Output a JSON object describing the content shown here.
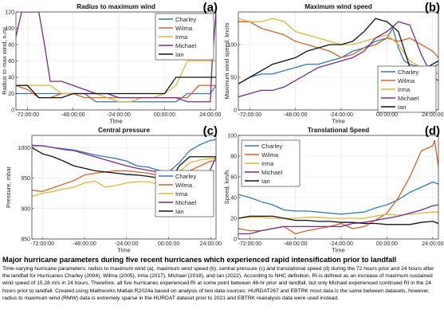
{
  "colors": {
    "Charley": "#3278b8",
    "Wilma": "#d4622b",
    "Irma": "#e0b53a",
    "Michael": "#7a2a8c",
    "Ian": "#111111"
  },
  "chart_data": [
    {
      "panel": "(a)",
      "type": "line",
      "title": "Radius to maximum wind",
      "xlabel": "Time",
      "ylabel": "Radius to max wind, n.mi",
      "xlim": [
        -78,
        27
      ],
      "ylim": [
        0,
        120
      ],
      "xticks": [
        -72,
        -48,
        -24,
        0,
        24
      ],
      "xtick_labels": [
        "-72:00:00",
        "-48:00:00",
        "-24:00:00",
        "00:00:00",
        "24:00:00"
      ],
      "yticks": [
        0,
        20,
        40,
        60,
        80,
        100,
        120
      ],
      "ytick_labels": [
        "0",
        "20",
        "40",
        "60",
        "80",
        "100",
        "120"
      ],
      "legend": {
        "position": "top-right",
        "entries": [
          "Charley",
          "Wilma",
          "Irma",
          "Michael",
          "Ian"
        ]
      },
      "series": [
        {
          "name": "Charley",
          "x": [
            -78,
            -72,
            -66,
            -60,
            -54,
            -48,
            -42,
            -36,
            -30,
            -24,
            -18,
            -12,
            -6,
            0,
            6,
            12,
            18,
            24,
            27
          ],
          "y": [
            20,
            20,
            20,
            20,
            20,
            20,
            20,
            10,
            10,
            10,
            10,
            10,
            10,
            10,
            10,
            20,
            20,
            20,
            30
          ]
        },
        {
          "name": "Wilma",
          "x": [
            -78,
            -72,
            -66,
            -60,
            -54,
            -48,
            -42,
            -36,
            -30,
            -24,
            -18,
            -12,
            -6,
            0,
            6,
            12,
            18,
            24,
            27
          ],
          "y": [
            30,
            25,
            15,
            15,
            20,
            20,
            15,
            15,
            15,
            15,
            15,
            15,
            15,
            15,
            15,
            15,
            30,
            30,
            30
          ]
        },
        {
          "name": "Irma",
          "x": [
            -78,
            -72,
            -66,
            -60,
            -54,
            -48,
            -42,
            -36,
            -30,
            -24,
            -18,
            -12,
            -6,
            0,
            6,
            12,
            18,
            24,
            27
          ],
          "y": [
            30,
            30,
            30,
            30,
            20,
            20,
            20,
            20,
            15,
            10,
            10,
            15,
            15,
            20,
            30,
            60,
            60,
            60,
            60
          ]
        },
        {
          "name": "Michael",
          "x": [
            -78,
            -75,
            -72,
            -66,
            -63,
            -60,
            -54,
            -48,
            -42,
            -36,
            -30,
            -24,
            -18,
            -12,
            -6,
            0,
            6,
            12,
            18,
            24,
            25,
            27
          ],
          "y": [
            90,
            120,
            120,
            120,
            80,
            35,
            35,
            30,
            25,
            20,
            20,
            15,
            15,
            15,
            15,
            15,
            15,
            10,
            10,
            10,
            60,
            120
          ]
        },
        {
          "name": "Ian",
          "x": [
            -78,
            -72,
            -66,
            -60,
            -54,
            -48,
            -42,
            -36,
            -30,
            -24,
            -18,
            -12,
            -6,
            0,
            6,
            12,
            18,
            24,
            27
          ],
          "y": [
            30,
            30,
            15,
            15,
            15,
            20,
            20,
            20,
            20,
            20,
            20,
            20,
            20,
            20,
            40,
            40,
            40,
            40,
            40
          ]
        }
      ]
    },
    {
      "panel": "(b)",
      "type": "line",
      "title": "Maximum wind speed",
      "xlabel": "Time",
      "ylabel": "Maximum wind speed, knots",
      "xlim": [
        -78,
        27
      ],
      "ylim": [
        0,
        150
      ],
      "xticks": [
        -72,
        -48,
        -24,
        0,
        24
      ],
      "xtick_labels": [
        "-72:00:00",
        "-48:00:00",
        "-24:00:00",
        "00:00:00",
        "24:00:00"
      ],
      "yticks": [
        0,
        50,
        100
      ],
      "ytick_labels": [
        "0",
        "50",
        "100"
      ],
      "legend": {
        "position": "bottom-right",
        "entries": [
          "Charley",
          "Wilma",
          "Irma",
          "Michael",
          "Ian"
        ]
      },
      "series": [
        {
          "name": "Charley",
          "x": [
            -78,
            -72,
            -66,
            -60,
            -54,
            -48,
            -42,
            -36,
            -30,
            -24,
            -18,
            -12,
            -6,
            0,
            3,
            6,
            9,
            12,
            18,
            24,
            27
          ],
          "y": [
            40,
            50,
            55,
            55,
            60,
            65,
            70,
            70,
            75,
            80,
            90,
            95,
            105,
            110,
            125,
            95,
            75,
            70,
            65,
            65,
            70
          ]
        },
        {
          "name": "Wilma",
          "x": [
            -78,
            -72,
            -66,
            -60,
            -54,
            -48,
            -42,
            -36,
            -30,
            -24,
            -18,
            -12,
            -6,
            0,
            6,
            12,
            18,
            24,
            27
          ],
          "y": [
            135,
            135,
            125,
            120,
            115,
            105,
            100,
            95,
            90,
            80,
            85,
            95,
            100,
            110,
            105,
            110,
            100,
            90,
            80
          ]
        },
        {
          "name": "Irma",
          "x": [
            -78,
            -72,
            -66,
            -60,
            -54,
            -48,
            -42,
            -36,
            -30,
            -24,
            -18,
            -12,
            -6,
            0,
            6,
            12,
            18,
            24,
            27
          ],
          "y": [
            140,
            135,
            135,
            140,
            135,
            120,
            115,
            110,
            105,
            100,
            100,
            105,
            110,
            115,
            100,
            75,
            65,
            60,
            55
          ]
        },
        {
          "name": "Michael",
          "x": [
            -78,
            -72,
            -66,
            -60,
            -54,
            -48,
            -42,
            -36,
            -30,
            -24,
            -18,
            -12,
            -6,
            0,
            6,
            12,
            18,
            24,
            27
          ],
          "y": [
            20,
            25,
            30,
            30,
            35,
            45,
            55,
            65,
            70,
            75,
            80,
            90,
            110,
            120,
            135,
            130,
            85,
            50,
            45
          ]
        },
        {
          "name": "Ian",
          "x": [
            -78,
            -72,
            -66,
            -60,
            -54,
            -48,
            -42,
            -36,
            -30,
            -24,
            -18,
            -12,
            -6,
            0,
            6,
            12,
            18,
            24,
            27
          ],
          "y": [
            40,
            50,
            60,
            70,
            75,
            80,
            90,
            95,
            100,
            100,
            105,
            120,
            140,
            135,
            120,
            65,
            60,
            70,
            75
          ]
        }
      ]
    },
    {
      "panel": "(c)",
      "type": "line",
      "title": "Central pressure",
      "xlabel": "Time",
      "ylabel": "Pressure, mbar",
      "xlim": [
        -78,
        27
      ],
      "ylim": [
        850,
        1020
      ],
      "xticks": [
        -72,
        -48,
        -24,
        0,
        24
      ],
      "xtick_labels": [
        "-72:00:00",
        "-48:00:00",
        "-24:00:00",
        "00:00:00",
        "24:00:00"
      ],
      "yticks": [
        850,
        900,
        950,
        1000
      ],
      "ytick_labels": [
        "850",
        "900",
        "950",
        "1000"
      ],
      "legend": {
        "position": "right",
        "entries": [
          "Charley",
          "Wilma",
          "Irma",
          "Michael",
          "Ian"
        ]
      },
      "series": [
        {
          "name": "Charley",
          "x": [
            -78,
            -72,
            -66,
            -60,
            -54,
            -48,
            -42,
            -36,
            -30,
            -24,
            -18,
            -12,
            -6,
            0,
            6,
            12,
            18,
            24,
            27
          ],
          "y": [
            1004,
            1003,
            1000,
            998,
            996,
            992,
            988,
            985,
            982,
            978,
            970,
            968,
            963,
            960,
            975,
            995,
            1005,
            1012,
            1013
          ]
        },
        {
          "name": "Wilma",
          "x": [
            -78,
            -72,
            -66,
            -60,
            -54,
            -48,
            -42,
            -36,
            -30,
            -24,
            -18,
            -12,
            -6,
            0,
            6,
            12,
            18,
            24,
            27
          ],
          "y": [
            930,
            928,
            934,
            940,
            946,
            955,
            958,
            960,
            962,
            962,
            960,
            958,
            955,
            950,
            958,
            962,
            970,
            978,
            978
          ]
        },
        {
          "name": "Irma",
          "x": [
            -78,
            -72,
            -66,
            -60,
            -54,
            -48,
            -42,
            -36,
            -30,
            -24,
            -18,
            -12,
            -6,
            0,
            6,
            12,
            18,
            24,
            27
          ],
          "y": [
            920,
            925,
            928,
            932,
            935,
            942,
            945,
            935,
            938,
            942,
            944,
            944,
            940,
            945,
            960,
            975,
            980,
            982,
            982
          ]
        },
        {
          "name": "Michael",
          "x": [
            -78,
            -72,
            -66,
            -60,
            -54,
            -48,
            -42,
            -36,
            -30,
            -24,
            -18,
            -12,
            -6,
            0,
            6,
            12,
            18,
            24,
            27
          ],
          "y": [
            1003,
            1003,
            1000,
            997,
            995,
            990,
            985,
            980,
            975,
            970,
            966,
            963,
            960,
            945,
            935,
            930,
            920,
            965,
            985
          ]
        },
        {
          "name": "Ian",
          "x": [
            -78,
            -72,
            -66,
            -60,
            -54,
            -48,
            -42,
            -36,
            -30,
            -24,
            -18,
            -12,
            -6,
            0,
            6,
            12,
            18,
            24,
            27
          ],
          "y": [
            1000,
            990,
            985,
            978,
            970,
            966,
            962,
            960,
            958,
            956,
            955,
            953,
            950,
            940,
            970,
            985,
            985,
            985,
            985
          ]
        }
      ]
    },
    {
      "panel": "(d)",
      "type": "line",
      "title": "Translational Speed",
      "xlabel": "Time",
      "ylabel": "Speed, km/h",
      "xlim": [
        -78,
        27
      ],
      "ylim": [
        0,
        100
      ],
      "xticks": [
        -72,
        -48,
        -24,
        0,
        24
      ],
      "xtick_labels": [
        "-72:00:00",
        "-48:00:00",
        "-24:00:00",
        "00:00:00",
        "24:00:00"
      ],
      "yticks": [
        0,
        20,
        40,
        60,
        80,
        100
      ],
      "ytick_labels": [
        "0",
        "20",
        "40",
        "60",
        "80",
        "100"
      ],
      "legend": {
        "position": "top-left",
        "entries": [
          "Charley",
          "Wilma",
          "Irma",
          "Michael",
          "Ian"
        ]
      },
      "series": [
        {
          "name": "Charley",
          "x": [
            -78,
            -72,
            -66,
            -60,
            -54,
            -48,
            -42,
            -36,
            -30,
            -24,
            -18,
            -12,
            -6,
            0,
            6,
            12,
            18,
            24,
            27
          ],
          "y": [
            43,
            40,
            36,
            33,
            28,
            27,
            27,
            26,
            25,
            24,
            25,
            26,
            30,
            33,
            38,
            45,
            50,
            55,
            53
          ]
        },
        {
          "name": "Wilma",
          "x": [
            -78,
            -72,
            -66,
            -60,
            -54,
            -48,
            -42,
            -36,
            -30,
            -24,
            -18,
            -12,
            -6,
            0,
            6,
            12,
            18,
            24,
            25,
            27
          ],
          "y": [
            10,
            8,
            8,
            10,
            12,
            5,
            8,
            10,
            12,
            15,
            10,
            12,
            18,
            25,
            40,
            60,
            85,
            90,
            95,
            70
          ]
        },
        {
          "name": "Irma",
          "x": [
            -78,
            -72,
            -66,
            -60,
            -54,
            -48,
            -42,
            -36,
            -30,
            -24,
            -18,
            -12,
            -6,
            0,
            6,
            12,
            18,
            24,
            27
          ],
          "y": [
            20,
            21,
            21,
            20,
            20,
            20,
            21,
            21,
            20,
            20,
            20,
            20,
            22,
            24,
            23,
            24,
            25,
            26,
            26
          ]
        },
        {
          "name": "Michael",
          "x": [
            -78,
            -72,
            -66,
            -60,
            -54,
            -48,
            -42,
            -36,
            -30,
            -24,
            -18,
            -12,
            -6,
            0,
            6,
            12,
            18,
            24,
            27
          ],
          "y": [
            5,
            5,
            8,
            10,
            12,
            12,
            12,
            12,
            12,
            12,
            15,
            16,
            18,
            20,
            22,
            25,
            28,
            32,
            33
          ]
        },
        {
          "name": "Ian",
          "x": [
            -78,
            -72,
            -66,
            -60,
            -54,
            -48,
            -42,
            -36,
            -30,
            -24,
            -18,
            -12,
            -6,
            0,
            6,
            12,
            18,
            24,
            27
          ],
          "y": [
            20,
            22,
            22,
            22,
            20,
            18,
            18,
            17,
            17,
            16,
            16,
            15,
            15,
            14,
            14,
            14,
            16,
            17,
            15
          ]
        }
      ]
    }
  ],
  "caption": {
    "title": "Major hurricane parameters during five recent hurricanes which experienced rapid intensification prior to landfall",
    "body": "Time-varying hurricane parameters: radius to maximum wind (a), maximum wind speed (b), central pressure (c) and translational speed (d) during the 72 hours prior and 24 hours after the landfall for Hurricanes Charley (2004), Wilma (2005), Irma (2017), Michael (2018), and Ian (2022). According to NHC definition, RI is defined as an increase of maximum sustained wind speed of 15.28 m/s in 24 hours. Therefore, all five hurricanes experienced RI at some point between 48-hr prior and landfall, but only Michael experienced continued RI in the 24 hours prior to landfall. Created using Mathworks Matlab R2024a based on analysis of two data sources: HURDAT267 and EBTRK most data is the same between datasets, however, radius to maximum wind (RMW) data is extremely sparse in the HURDAT dataset prior to 2021 and EBTRK reanalysis data were used instead."
  }
}
